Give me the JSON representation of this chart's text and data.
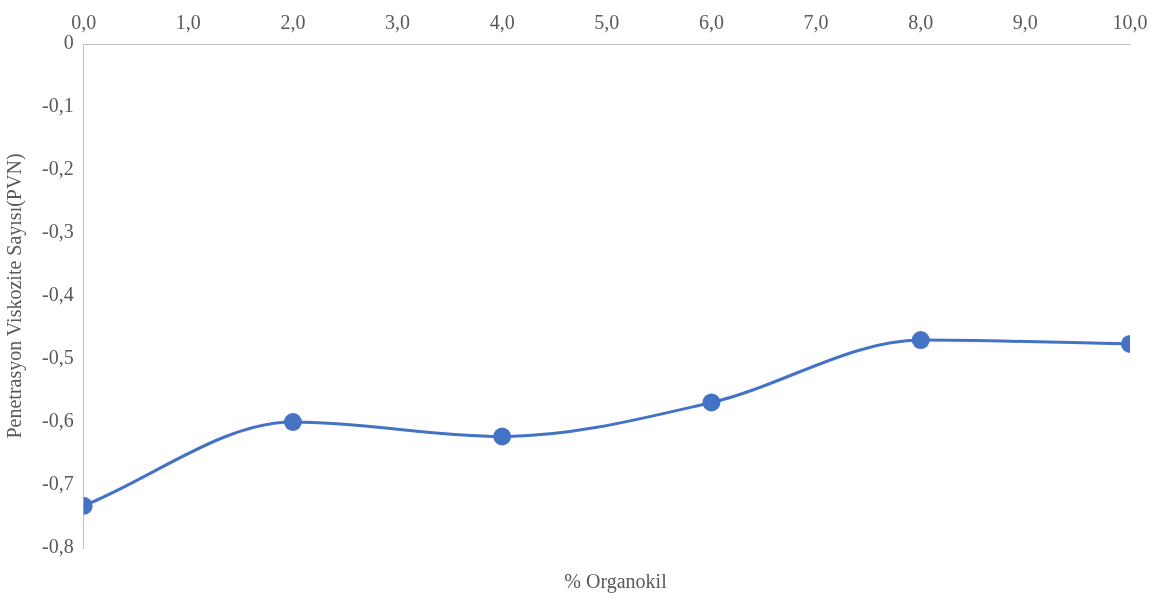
{
  "chart_data": {
    "type": "line",
    "xlabel": "% Organokil",
    "ylabel": "Penetrasyon Viskozite Sayısı(PVN)",
    "x": [
      0,
      2,
      4,
      6,
      8,
      10
    ],
    "series": [
      {
        "color": "#4472c4",
        "values": [
          -0.733,
          -0.6,
          -0.623,
          -0.569,
          -0.47,
          -0.476
        ]
      }
    ],
    "xlim": [
      0,
      10
    ],
    "xticks": [
      {
        "value": 0,
        "label": "0,0"
      },
      {
        "value": 1,
        "label": "1,0"
      },
      {
        "value": 2,
        "label": "2,0"
      },
      {
        "value": 3,
        "label": "3,0"
      },
      {
        "value": 4,
        "label": "4,0"
      },
      {
        "value": 5,
        "label": "5,0"
      },
      {
        "value": 6,
        "label": "6,0"
      },
      {
        "value": 7,
        "label": "7,0"
      },
      {
        "value": 8,
        "label": "8,0"
      },
      {
        "value": 9,
        "label": "9,0"
      },
      {
        "value": 10,
        "label": "10,0"
      }
    ],
    "ylim": [
      -0.8,
      0
    ],
    "yticks": [
      {
        "value": -0.8,
        "label": "-0,8"
      },
      {
        "value": -0.7,
        "label": "-0,7"
      },
      {
        "value": -0.6,
        "label": "-0,6"
      },
      {
        "value": -0.5,
        "label": "-0,5"
      },
      {
        "value": -0.4,
        "label": "-0,4"
      },
      {
        "value": -0.3,
        "label": "-0,3"
      },
      {
        "value": -0.2,
        "label": "-0,2"
      },
      {
        "value": -0.1,
        "label": "-0,1"
      },
      0
    ],
    "grid": false,
    "legend": false,
    "marker": "circle",
    "line_style": "solid"
  }
}
